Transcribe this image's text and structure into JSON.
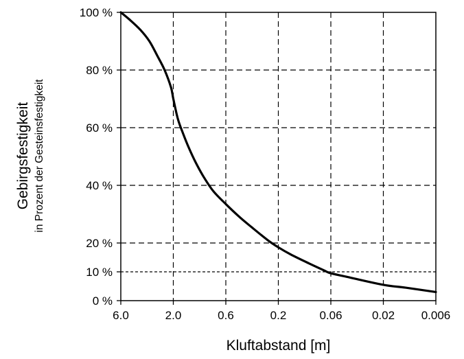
{
  "chart_data": {
    "type": "line",
    "title": "",
    "xlabel": "Kluftabstand [m]",
    "ylabel": "Gebirgsfestigkeit",
    "ylabel_sub": "in Prozent der Gesteinsfestigkeit",
    "x_tick_labels": [
      "6.0",
      "2.0",
      "0.6",
      "0.2",
      "0.06",
      "0.02",
      "0.006"
    ],
    "y_ticks": [
      {
        "value": 0,
        "label": "0 %"
      },
      {
        "value": 10,
        "label": "10 %"
      },
      {
        "value": 20,
        "label": "20 %"
      },
      {
        "value": 40,
        "label": "40 %"
      },
      {
        "value": 60,
        "label": "60 %"
      },
      {
        "value": 80,
        "label": "80 %"
      },
      {
        "value": 100,
        "label": "100 %"
      }
    ],
    "ylim": [
      0,
      100
    ],
    "x_scale": "log-reversed",
    "grid": true,
    "series": [
      {
        "x": [
          6.0,
          5.0,
          4.0,
          3.3,
          2.8,
          2.4,
          2.1,
          2.0,
          1.8,
          1.6,
          1.4,
          1.2,
          1.0,
          0.8,
          0.6,
          0.45,
          0.35,
          0.25,
          0.2,
          0.15,
          0.1,
          0.07,
          0.06,
          0.04,
          0.02,
          0.012,
          0.006
        ],
        "values": [
          100,
          97.5,
          94,
          90,
          85,
          80,
          74,
          70,
          63,
          58,
          53,
          48,
          43,
          38,
          33.5,
          29,
          25.5,
          21,
          18.5,
          16,
          13,
          10.5,
          9.5,
          8,
          5.5,
          4.5,
          3
        ]
      }
    ]
  }
}
